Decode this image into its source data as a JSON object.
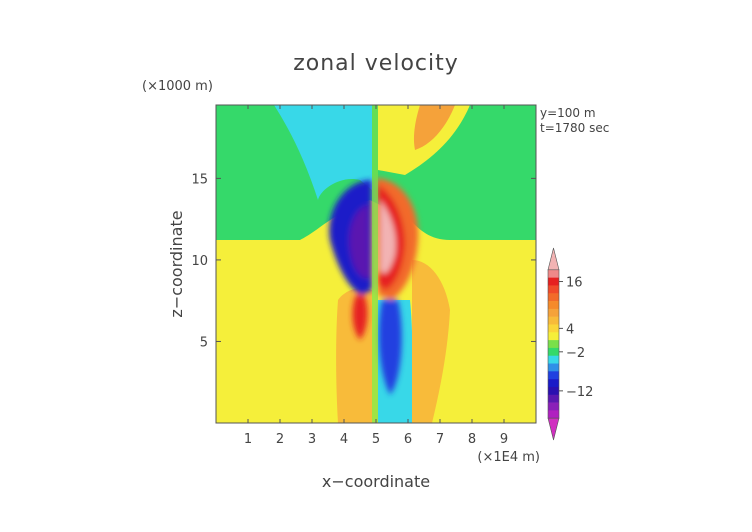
{
  "chart_data": {
    "type": "heatmap",
    "title": "zonal velocity",
    "xlabel": "x−coordinate",
    "ylabel": "z−coordinate",
    "x_unit": "(×1E4 m)",
    "y_unit": "(×1000 m)",
    "annotations": [
      "y=100 m",
      "t=1780 sec"
    ],
    "xlim": [
      0,
      10
    ],
    "ylim": [
      0,
      19.5
    ],
    "x_ticks": [
      1,
      2,
      3,
      4,
      5,
      6,
      7,
      8,
      9
    ],
    "y_ticks": [
      5,
      10,
      15
    ],
    "x_tick_labels": [
      "1",
      "2",
      "3",
      "4",
      "5",
      "6",
      "7",
      "8",
      "9"
    ],
    "y_tick_labels": [
      "5",
      "10",
      "15"
    ],
    "colorbar": {
      "labels": [
        "16",
        "4",
        "−2",
        "−12"
      ],
      "label_values": [
        16,
        4,
        -2,
        -12
      ],
      "levels": [
        {
          "value": 20,
          "color": "#f2b3b3"
        },
        {
          "value": 18,
          "color": "#ef8888"
        },
        {
          "value": 16,
          "color": "#e62020"
        },
        {
          "value": 14,
          "color": "#f04a2a"
        },
        {
          "value": 12,
          "color": "#f26b2a"
        },
        {
          "value": 10,
          "color": "#f58a2a"
        },
        {
          "value": 8,
          "color": "#f5a23a"
        },
        {
          "value": 6,
          "color": "#f8bb3a"
        },
        {
          "value": 4,
          "color": "#fbd63a"
        },
        {
          "value": 2,
          "color": "#f5ef3a"
        },
        {
          "value": 0,
          "color": "#7ae04a"
        },
        {
          "value": -2,
          "color": "#35d96a"
        },
        {
          "value": -4,
          "color": "#38d8e8"
        },
        {
          "value": -6,
          "color": "#2f8fe8"
        },
        {
          "value": -8,
          "color": "#2040e0"
        },
        {
          "value": -10,
          "color": "#1a1ac8"
        },
        {
          "value": -12,
          "color": "#2a10b0"
        },
        {
          "value": -14,
          "color": "#5a18b0"
        },
        {
          "value": -16,
          "color": "#8a20b8"
        },
        {
          "value": -18,
          "color": "#b020c0"
        },
        {
          "value": -20,
          "color": "#d030c0"
        }
      ]
    }
  }
}
